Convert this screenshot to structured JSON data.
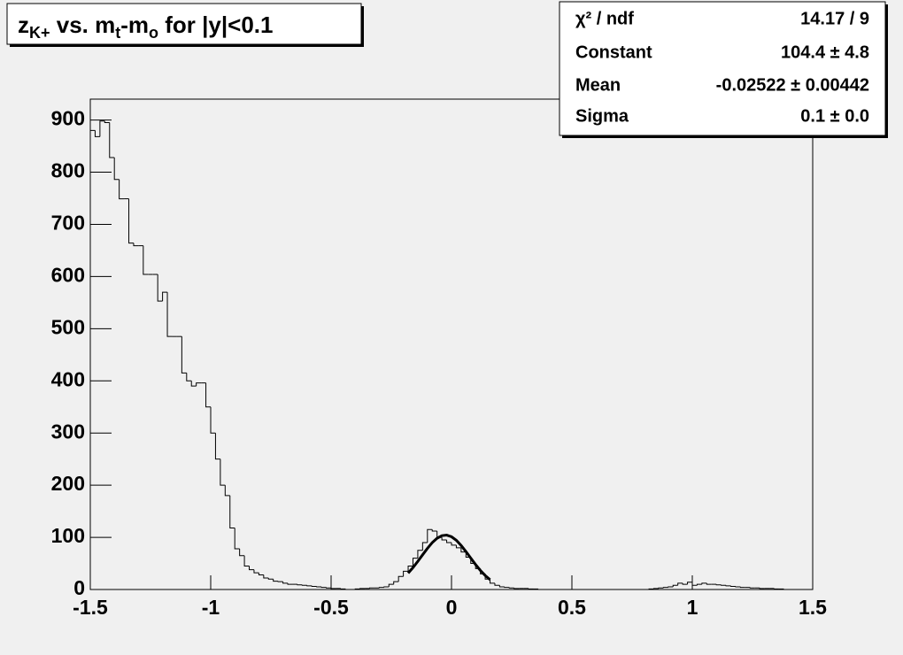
{
  "chart_data": {
    "type": "histogram",
    "title": [
      "z",
      "K+",
      " vs. m",
      "t",
      "-m",
      "o",
      " for |y|<0.1"
    ],
    "bins": [
      -1.5,
      -1.48,
      -1.46,
      -1.44,
      -1.42,
      -1.4,
      -1.38,
      -1.36,
      -1.34,
      -1.32,
      -1.3,
      -1.28,
      -1.26,
      -1.24,
      -1.22,
      -1.2,
      -1.18,
      -1.16,
      -1.14,
      -1.12,
      -1.1,
      -1.08,
      -1.06,
      -1.04,
      -1.02,
      -1,
      -0.98,
      -0.96,
      -0.94,
      -0.92,
      -0.9,
      -0.88,
      -0.86,
      -0.84,
      -0.82,
      -0.8,
      -0.78,
      -0.76,
      -0.74,
      -0.72,
      -0.7,
      -0.68,
      -0.66,
      -0.64,
      -0.62,
      -0.6,
      -0.58,
      -0.56,
      -0.54,
      -0.52,
      -0.5,
      -0.48,
      -0.46,
      -0.44,
      -0.42,
      -0.4,
      -0.38,
      -0.36,
      -0.34,
      -0.32,
      -0.3,
      -0.28,
      -0.26,
      -0.24,
      -0.22,
      -0.2,
      -0.18,
      -0.16,
      -0.14,
      -0.12,
      -0.1,
      -0.08,
      -0.06,
      -0.04,
      -0.02,
      0,
      0.02,
      0.04,
      0.06,
      0.08,
      0.1,
      0.12,
      0.14,
      0.16,
      0.18,
      0.2,
      0.22,
      0.24,
      0.26,
      0.28,
      0.3,
      0.32,
      0.34,
      0.36,
      0.38,
      0.4,
      0.42,
      0.44,
      0.46,
      0.48,
      0.5,
      0.52,
      0.54,
      0.56,
      0.58,
      0.6,
      0.62,
      0.64,
      0.66,
      0.68,
      0.7,
      0.72,
      0.74,
      0.76,
      0.78,
      0.8,
      0.82,
      0.84,
      0.86,
      0.88,
      0.9,
      0.92,
      0.94,
      0.96,
      0.98,
      1,
      1.02,
      1.04,
      1.06,
      1.08,
      1.1,
      1.12,
      1.14,
      1.16,
      1.18,
      1.2,
      1.22,
      1.24,
      1.26,
      1.28,
      1.3,
      1.32,
      1.34,
      1.36,
      1.38,
      1.4,
      1.42,
      1.44,
      1.46,
      1.48,
      1.5
    ],
    "values": [
      880,
      868,
      898,
      895,
      828,
      786,
      749,
      749,
      664,
      659,
      659,
      604,
      604,
      604,
      553,
      570,
      485,
      485,
      485,
      415,
      400,
      390,
      396,
      396,
      350,
      300,
      250,
      200,
      180,
      118,
      78,
      65,
      45,
      38,
      32,
      28,
      22,
      20,
      16,
      15,
      12,
      10,
      10,
      9,
      8,
      7,
      6,
      5,
      4,
      3,
      2,
      2,
      1,
      0,
      0,
      1,
      2,
      2,
      3,
      3,
      4,
      5,
      10,
      15,
      25,
      35,
      45,
      60,
      75,
      90,
      115,
      112,
      100,
      95,
      90,
      85,
      80,
      72,
      62,
      50,
      40,
      30,
      20,
      12,
      8,
      5,
      4,
      3,
      2,
      2,
      2,
      1,
      1,
      0,
      0,
      0,
      0,
      0,
      0,
      0,
      0,
      0,
      0,
      0,
      0,
      0,
      0,
      0,
      0,
      0,
      0,
      0,
      0,
      0,
      0,
      0,
      1,
      2,
      3,
      4,
      5,
      8,
      12,
      10,
      14,
      8,
      10,
      12,
      10,
      10,
      9,
      8,
      7,
      6,
      5,
      4,
      4,
      3,
      3,
      2,
      2,
      2,
      1,
      1,
      0,
      0,
      0,
      0,
      0,
      0
    ],
    "color": "#000000",
    "fit": {
      "color": "#000000",
      "x": [
        -0.18,
        -0.16,
        -0.14,
        -0.12,
        -0.1,
        -0.08,
        -0.06,
        -0.04,
        -0.02,
        0,
        0.02,
        0.04,
        0.06,
        0.08,
        0.1,
        0.12,
        0.14,
        0.16
      ],
      "values": [
        31.4,
        42,
        53.9,
        66.5,
        78.8,
        89.8,
        98.2,
        103.2,
        104.3,
        101.2,
        94.4,
        84.5,
        72.7,
        60.2,
        47.8,
        36.5,
        26.8,
        18.9
      ]
    },
    "xlim": [
      -1.5,
      1.5
    ],
    "xticks": [
      -1.5,
      -1,
      -0.5,
      0,
      0.5,
      1,
      1.5
    ],
    "ylim": [
      0,
      940
    ],
    "yticks": [
      0,
      100,
      200,
      300,
      400,
      500,
      600,
      700,
      800,
      900
    ],
    "stats": [
      [
        "χ² / ndf",
        "14.17 / 9"
      ],
      [
        "Constant",
        "104.4 ± 4.8"
      ],
      [
        "Mean",
        "-0.02522 ± 0.00442"
      ],
      [
        "Sigma",
        "0.1 ± 0.0"
      ]
    ]
  }
}
